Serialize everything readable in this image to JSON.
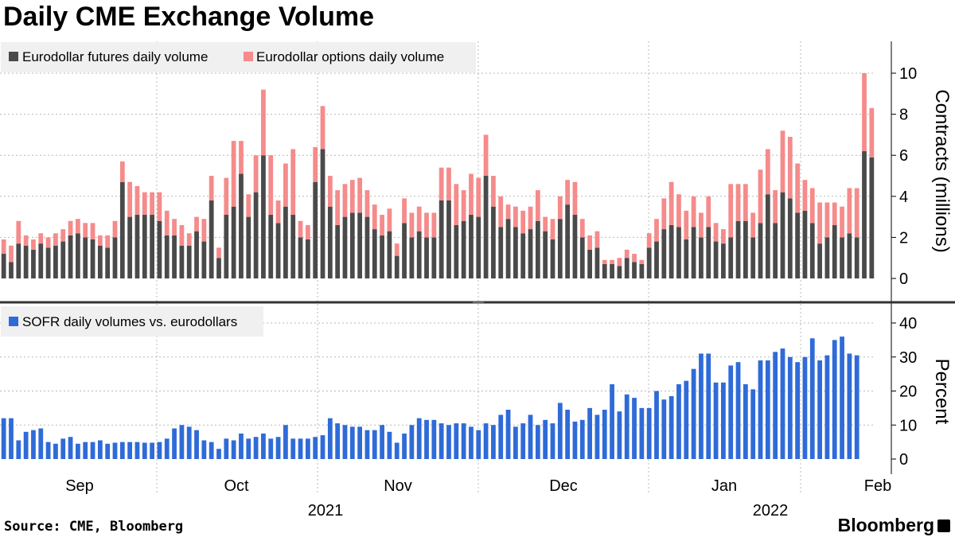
{
  "title": "Daily CME Exchange Volume",
  "source": "Source: CME, Bloomberg",
  "brand": "Bloomberg",
  "colors": {
    "futures": "#4a4a4a",
    "options": "#f58b8b",
    "sofr": "#2f6bd8",
    "grid": "#b8b8b8",
    "legend_bg": "#f0f0f0"
  },
  "x_axis": {
    "month_labels": [
      "Sep",
      "Oct",
      "Nov",
      "Dec",
      "Jan",
      "Feb"
    ],
    "year_labels": [
      "2021",
      "2022"
    ]
  },
  "chart_data": [
    {
      "type": "bar",
      "stacked": true,
      "ylabel": "Contracts (millions)",
      "yticks": [
        0,
        2,
        4,
        6,
        8,
        10
      ],
      "ylim": [
        -1.1,
        11.5
      ],
      "grid": true,
      "legend_position": "top-left",
      "series": [
        {
          "name": "Eurodollar futures daily volume",
          "values": [
            1.2,
            0.8,
            1.7,
            1.6,
            1.4,
            1.7,
            1.5,
            1.6,
            1.8,
            2.1,
            2.2,
            2.0,
            1.9,
            1.6,
            1.5,
            2.0,
            4.7,
            3.0,
            3.1,
            3.1,
            3.1,
            2.8,
            2.1,
            2.1,
            1.6,
            1.6,
            2.3,
            1.8,
            3.8,
            1.0,
            3.1,
            3.5,
            5.1,
            3.0,
            4.2,
            6.0,
            3.1,
            2.7,
            3.5,
            3.1,
            2.0,
            1.9,
            4.7,
            6.3,
            3.5,
            2.6,
            3.0,
            3.2,
            3.2,
            3.0,
            2.4,
            2.1,
            2.3,
            1.1,
            2.7,
            2.0,
            2.3,
            2.0,
            2.0,
            3.8,
            3.8,
            2.6,
            2.8,
            3.1,
            3.0,
            5.0,
            3.5,
            2.5,
            2.9,
            2.5,
            2.2,
            2.4,
            2.8,
            2.3,
            1.9,
            2.9,
            3.6,
            3.1,
            2.0,
            1.4,
            1.5,
            0.7,
            0.7,
            0.6,
            1.0,
            0.8,
            0.7,
            1.5,
            1.8,
            2.4,
            2.6,
            2.5,
            1.9,
            2.5,
            2.0,
            2.5,
            1.8,
            1.7,
            2.0,
            2.8,
            2.8,
            2.0,
            2.7,
            4.1,
            2.7,
            4.2,
            3.9,
            3.2,
            3.3,
            2.7,
            1.7,
            2.0,
            2.6,
            2.0,
            2.2,
            2.0,
            6.2,
            5.9
          ]
        },
        {
          "name": "Eurodollar options daily volume",
          "values": [
            0.7,
            0.8,
            1.1,
            0.5,
            0.5,
            0.5,
            0.5,
            0.6,
            0.6,
            0.7,
            0.7,
            0.7,
            0.8,
            0.5,
            0.6,
            0.8,
            1.0,
            1.7,
            1.4,
            1.1,
            1.1,
            1.4,
            1.2,
            0.8,
            1.0,
            0.6,
            0.7,
            1.1,
            1.2,
            0.5,
            1.8,
            3.2,
            1.6,
            1.1,
            1.8,
            3.2,
            2.9,
            1.1,
            2.1,
            3.2,
            0.8,
            0.7,
            1.7,
            2.1,
            1.5,
            1.7,
            1.6,
            1.6,
            1.7,
            1.3,
            1.2,
            1.0,
            1.1,
            0.6,
            1.2,
            1.2,
            1.2,
            1.2,
            1.2,
            1.6,
            1.6,
            2.0,
            1.5,
            2.0,
            1.9,
            2.0,
            1.5,
            1.5,
            0.7,
            1.0,
            1.1,
            1.1,
            1.5,
            0.7,
            1.0,
            1.1,
            1.2,
            1.6,
            0.9,
            0.7,
            0.8,
            0.2,
            0.2,
            0.4,
            0.4,
            0.4,
            0.2,
            0.7,
            1.1,
            1.5,
            2.1,
            1.6,
            1.4,
            1.5,
            1.2,
            1.5,
            0.9,
            0.7,
            2.6,
            1.8,
            1.8,
            1.2,
            2.6,
            2.2,
            1.6,
            3.0,
            3.0,
            2.4,
            1.5,
            1.7,
            2.0,
            1.7,
            1.1,
            1.5,
            2.2,
            2.4,
            3.8,
            2.4
          ]
        }
      ]
    },
    {
      "type": "bar",
      "ylabel": "Percent",
      "yticks": [
        0,
        10,
        20,
        30,
        40
      ],
      "ylim": [
        -4.5,
        45
      ],
      "grid": true,
      "legend_position": "top-left",
      "series": [
        {
          "name": "SOFR daily volumes vs. eurodollars",
          "values": [
            12,
            12,
            5.5,
            8,
            8.5,
            9,
            5,
            4.5,
            6,
            6.5,
            4.5,
            5,
            5,
            5.5,
            4.5,
            4.8,
            5,
            5,
            5,
            4.8,
            4.8,
            5,
            6,
            9,
            10,
            9.5,
            8.5,
            5.5,
            5,
            3,
            6,
            5.5,
            7.5,
            6,
            6.5,
            7.5,
            6,
            6.5,
            10,
            6,
            6,
            6,
            6.5,
            7,
            12,
            10.5,
            10,
            9.5,
            9.5,
            8.5,
            8.5,
            10,
            8,
            4.8,
            7.5,
            10,
            12,
            11.5,
            11.5,
            10.5,
            10,
            10.5,
            10.5,
            9.5,
            8.5,
            10.5,
            10,
            13,
            14.5,
            9.5,
            10.5,
            13,
            10,
            11.5,
            10.5,
            16.5,
            14.5,
            11,
            11.5,
            15,
            13,
            14.5,
            22,
            14,
            19,
            18,
            15,
            15,
            20,
            17.5,
            18.5,
            22,
            23,
            26.5,
            31,
            31,
            22.5,
            22.5,
            27.5,
            28.5,
            22,
            20.5,
            29,
            29,
            31.5,
            32.5,
            30,
            28.5,
            30,
            35.5,
            29,
            30.5,
            35,
            36,
            31,
            30.5
          ]
        }
      ]
    }
  ]
}
